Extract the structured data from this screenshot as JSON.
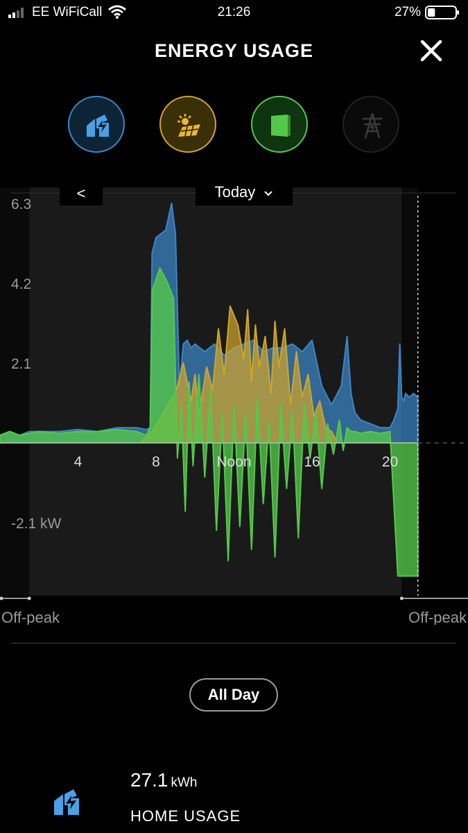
{
  "status_bar": {
    "carrier": "EE WiFiCall",
    "time": "21:26",
    "battery": "27%",
    "battery_level": 0.27
  },
  "header": {
    "title": "ENERGY USAGE"
  },
  "sources": [
    {
      "name": "home",
      "icon": "home-icon",
      "color": "#3b86c6",
      "active": true
    },
    {
      "name": "solar",
      "icon": "solar-panel-icon",
      "color": "#cfa52b",
      "active": true
    },
    {
      "name": "powerwall",
      "icon": "powerwall-icon",
      "color": "#55c84a",
      "active": true
    },
    {
      "name": "grid",
      "icon": "grid-tower-icon",
      "color": "#555555",
      "active": false
    }
  ],
  "date_nav": {
    "prev": "<",
    "date": "Today"
  },
  "chart_data": {
    "type": "area",
    "ytick_labels": [
      "6.3",
      "4.2",
      "2.1",
      "-2.1 kW"
    ],
    "yticks": [
      6.3,
      4.2,
      2.1,
      -2.1
    ],
    "ylim": [
      -4.2,
      6.3
    ],
    "xlim": [
      0,
      24
    ],
    "xticks": [
      4,
      8,
      12,
      16,
      20
    ],
    "xtick_labels": [
      "4",
      "8",
      "Noon",
      "16",
      "20"
    ],
    "off_peak_label": "Off-peak",
    "off_peak_ranges": [
      [
        0,
        1.5
      ],
      [
        20.6,
        24
      ]
    ],
    "now_hour": 21.43,
    "series": [
      {
        "color": "#3b86c6",
        "x": [
          0,
          0.5,
          1,
          1.5,
          2,
          3,
          4,
          5,
          6,
          7,
          7.5,
          7.7,
          7.8,
          8,
          8.5,
          8.8,
          9,
          9.2,
          9.4,
          9.6,
          9.8,
          10,
          10.5,
          11,
          11.5,
          12,
          12.5,
          13,
          13.5,
          14,
          14.5,
          15,
          15.5,
          16,
          16.5,
          17,
          17.5,
          17.8,
          18,
          18.2,
          18.5,
          19,
          19.5,
          20,
          20.2,
          20.4,
          20.5,
          20.6,
          20.7,
          20.8,
          21,
          21.2,
          21.43
        ],
        "y": [
          0.2,
          0.3,
          0.2,
          0.3,
          0.3,
          0.3,
          0.35,
          0.3,
          0.4,
          0.4,
          0.35,
          0.4,
          5.0,
          5.4,
          5.6,
          6.3,
          5.5,
          1.5,
          2.6,
          2.7,
          2.5,
          2.6,
          2.4,
          2.6,
          2.3,
          2.5,
          2.6,
          2.7,
          2.4,
          2.5,
          2.5,
          2.6,
          2.4,
          2.7,
          1.5,
          1.0,
          1.5,
          2.8,
          1.3,
          0.8,
          0.6,
          0.5,
          0.4,
          0.4,
          0.6,
          0.9,
          2.6,
          1.2,
          1.1,
          1.3,
          1.2,
          1.3,
          1.2
        ]
      },
      {
        "color": "#cfa52b",
        "x": [
          7.2,
          7.8,
          8.5,
          9,
          9.4,
          9.8,
          10,
          10.2,
          10.6,
          10.9,
          11.2,
          11.5,
          11.8,
          12.2,
          12.5,
          12.7,
          12.9,
          13.1,
          13.3,
          13.6,
          13.9,
          14.1,
          14.3,
          14.6,
          14.9,
          15.2,
          15.5,
          15.8,
          16.1,
          16.4,
          16.7,
          17,
          17.3
        ],
        "y": [
          0,
          0.3,
          0.9,
          1.3,
          2.1,
          1.1,
          1.8,
          0.7,
          2.0,
          1.4,
          3.0,
          1.8,
          3.6,
          3.1,
          2.2,
          3.5,
          1.6,
          3.1,
          2.0,
          2.8,
          1.3,
          3.2,
          2.0,
          3.0,
          1.0,
          2.4,
          1.2,
          1.8,
          0.7,
          1.1,
          0.4,
          0.3,
          0
        ]
      },
      {
        "color": "#55c84a",
        "x": [
          0,
          0.5,
          1,
          2,
          3,
          4,
          5,
          6,
          7,
          7.5,
          7.7,
          7.8,
          8.2,
          8.6,
          8.9,
          9.1,
          9.3,
          9.5,
          9.7,
          9.9,
          10.2,
          10.5,
          10.8,
          11.1,
          11.4,
          11.7,
          12,
          12.3,
          12.6,
          12.9,
          13.2,
          13.5,
          13.8,
          14.1,
          14.4,
          14.7,
          15,
          15.3,
          15.6,
          15.9,
          16.2,
          16.5,
          16.8,
          17.1,
          17.4,
          17.6,
          17.8,
          18,
          18.2,
          18.5,
          19,
          19.5,
          20,
          20.4,
          20.5,
          20.6,
          21,
          21.43
        ],
        "y": [
          0.2,
          0.3,
          0.2,
          0.3,
          0.25,
          0.3,
          0.3,
          0.35,
          0.3,
          0.2,
          0.4,
          4.0,
          4.6,
          4.2,
          3.8,
          -0.4,
          1.0,
          -1.8,
          1.6,
          -0.6,
          1.8,
          -0.9,
          1.4,
          -2.3,
          0.8,
          -3.1,
          1.0,
          -2.2,
          0.8,
          -2.8,
          1.2,
          -1.6,
          0.6,
          -3.0,
          1.0,
          -1.2,
          0.8,
          -2.5,
          1.0,
          -0.4,
          0.8,
          -1.2,
          0.5,
          -0.3,
          0.6,
          -0.2,
          0.4,
          0.3,
          0.3,
          0.25,
          0.3,
          0.25,
          0.3,
          -3.5,
          -3.5,
          -3.5,
          -3.5,
          -3.5
        ]
      }
    ]
  },
  "range_button": "All Day",
  "summary": {
    "value": "27.1",
    "unit": "kWh",
    "label": "HOME USAGE"
  }
}
